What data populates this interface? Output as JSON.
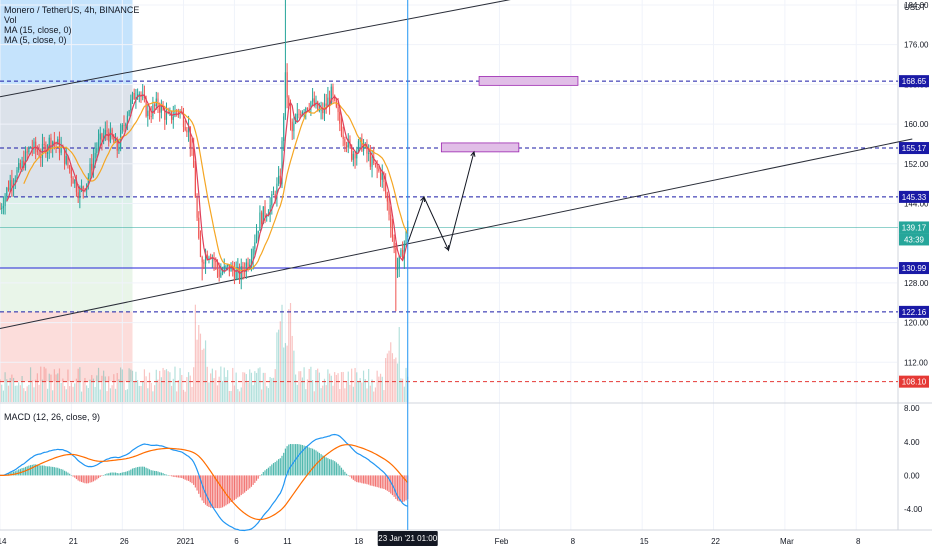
{
  "header": {
    "symbol_line": "Monero / TetherUS, 4h, BINANCE",
    "indicators": [
      "Vol",
      "MA (15, close, 0)",
      "MA (5, close, 0)"
    ],
    "macd_label": "MACD (12, 26, close, 9)",
    "currency": "USDT"
  },
  "colors": {
    "background": "#ffffff",
    "grid": "#f0f3fa",
    "candle_up": "#26a69a",
    "candle_down": "#ef5350",
    "level_line": "#1a1aa6",
    "support_line": "#2323d8",
    "red_level": "#e53935",
    "current_price": "#26a69a",
    "ma15": "#f5a623",
    "ma5": "#e0405a",
    "macd_line": "#2196f3",
    "signal_line": "#ff6d00",
    "cursor_line": "#2196f3",
    "trend_line": "#2a2e39",
    "target_box": "#e1bee7"
  },
  "chart_data": {
    "type": "candlestick",
    "y_axis": {
      "range": [
        104,
        185
      ],
      "ticks": [
        "184.00",
        "176.00",
        "168.00",
        "160.00",
        "152.00",
        "144.00",
        "128.00",
        "120.00",
        "112.00"
      ]
    },
    "macd_axis": {
      "range": [
        -6.5,
        8.5
      ],
      "ticks": [
        "8.00",
        "4.00",
        "0.00",
        "-4.00"
      ]
    },
    "x_axis": {
      "range_days": [
        "Dec 14",
        "Mar 10"
      ],
      "ticks": [
        {
          "label": "14",
          "day": 0
        },
        {
          "label": "21",
          "day": 7
        },
        {
          "label": "26",
          "day": 12
        },
        {
          "label": "2021",
          "day": 18
        },
        {
          "label": "6",
          "day": 23
        },
        {
          "label": "11",
          "day": 28
        },
        {
          "label": "18",
          "day": 35
        },
        {
          "label": "Feb",
          "day": 49
        },
        {
          "label": "8",
          "day": 56
        },
        {
          "label": "15",
          "day": 63
        },
        {
          "label": "22",
          "day": 70
        },
        {
          "label": "Mar",
          "day": 77
        },
        {
          "label": "8",
          "day": 84
        }
      ],
      "cursor_label": "23 Jan '21   01:00"
    },
    "price_levels": [
      {
        "label": "168.65",
        "value": 168.65,
        "style": "dashed",
        "color": "level_line"
      },
      {
        "label": "155.17",
        "value": 155.17,
        "style": "dashed",
        "color": "level_line"
      },
      {
        "label": "145.33",
        "value": 145.33,
        "style": "dashed",
        "color": "level_line"
      },
      {
        "label": "130.99",
        "value": 130.99,
        "style": "solid",
        "color": "support_line"
      },
      {
        "label": "122.16",
        "value": 122.16,
        "style": "dashed",
        "color": "level_line"
      },
      {
        "label": "108.10",
        "value": 108.1,
        "style": "dashed",
        "color": "red_level"
      }
    ],
    "current_price": {
      "label": "139.17",
      "value": 139.17,
      "countdown": "43:39"
    },
    "channel_lines": [
      {
        "from": [
          0,
          165.5
        ],
        "to": [
          52.4,
          186
        ]
      },
      {
        "from": [
          0,
          118.8
        ],
        "to": [
          89.5,
          157.0
        ]
      }
    ],
    "target_boxes": [
      {
        "x": [
          47.0,
          56.7
        ],
        "y": [
          167.8,
          169.6
        ]
      },
      {
        "x": [
          43.3,
          50.9
        ],
        "y": [
          154.4,
          156.2
        ]
      }
    ],
    "projection_path": [
      [
        40.0,
        136.0
      ],
      [
        41.6,
        145.3
      ],
      [
        44.0,
        134.6
      ],
      [
        46.5,
        154.4
      ]
    ],
    "cursor_day": 40.0,
    "shaded_zones": [
      {
        "x": [
          0,
          13.0
        ],
        "y": [
          168.0,
          185
        ],
        "color": "#bbdefb"
      },
      {
        "x": [
          0,
          13.0
        ],
        "y": [
          145.3,
          168.0
        ],
        "color": "#d6dde6"
      },
      {
        "x": [
          0,
          13.0
        ],
        "y": [
          131.0,
          145.3
        ],
        "color": "#d7eee6"
      },
      {
        "x": [
          0,
          13.0
        ],
        "y": [
          122.2,
          131.0
        ],
        "color": "#e5f3e5"
      },
      {
        "x": [
          0,
          13.0
        ],
        "y": [
          108.1,
          122.2
        ],
        "color": "#fcd7d5"
      }
    ],
    "price_path": [
      [
        0,
        143.0
      ],
      [
        1,
        148.5
      ],
      [
        2,
        151.0
      ],
      [
        3,
        155.5
      ],
      [
        4,
        154.0
      ],
      [
        5,
        157.0
      ],
      [
        6,
        155.0
      ],
      [
        7,
        150.0
      ],
      [
        7.8,
        146.0
      ],
      [
        8.6,
        149.0
      ],
      [
        9.5,
        155.5
      ],
      [
        10.5,
        158.5
      ],
      [
        11.5,
        155.0
      ],
      [
        12.5,
        162.5
      ],
      [
        13.5,
        167.5
      ],
      [
        14.5,
        162.0
      ],
      [
        15.5,
        164.0
      ],
      [
        16.5,
        161.0
      ],
      [
        17.5,
        163.0
      ],
      [
        18.5,
        159.0
      ],
      [
        19.0,
        151.0
      ],
      [
        19.6,
        132.5
      ],
      [
        20.6,
        134.5
      ],
      [
        21.5,
        130.0
      ],
      [
        22.5,
        131.0
      ],
      [
        23.5,
        129.5
      ],
      [
        24.5,
        133.0
      ],
      [
        25.5,
        141.0
      ],
      [
        26.5,
        143.5
      ],
      [
        27.5,
        149.0
      ],
      [
        28.0,
        169.0
      ],
      [
        28.6,
        158.0
      ],
      [
        29.5,
        163.0
      ],
      [
        30.5,
        164.5
      ],
      [
        31.5,
        162.0
      ],
      [
        32.5,
        166.0
      ],
      [
        33.5,
        159.0
      ],
      [
        34.5,
        154.0
      ],
      [
        35.5,
        156.0
      ],
      [
        36.5,
        152.0
      ],
      [
        37.5,
        149.5
      ],
      [
        38.3,
        141.0
      ],
      [
        38.9,
        130.5
      ],
      [
        39.4,
        133.5
      ],
      [
        40.0,
        139.17
      ]
    ],
    "volume_range": [
      0,
      100
    ]
  }
}
